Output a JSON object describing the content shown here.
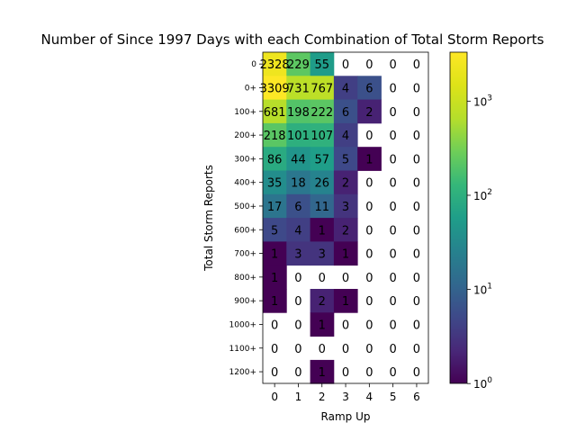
{
  "chart_data": {
    "type": "heatmap",
    "title": "Number of Since 1997 Days with each Combination of Total Storm Reports",
    "xlabel": "Ramp Up",
    "ylabel": "Total Storm Reports",
    "x_categories": [
      "0",
      "1",
      "2",
      "3",
      "4",
      "5",
      "6"
    ],
    "y_categories": [
      "0",
      "0+",
      "100+",
      "200+",
      "300+",
      "400+",
      "500+",
      "600+",
      "700+",
      "800+",
      "900+",
      "1000+",
      "1100+",
      "1200+"
    ],
    "values": [
      [
        2328,
        229,
        55,
        0,
        0,
        0,
        0
      ],
      [
        3309,
        731,
        767,
        4,
        6,
        0,
        0
      ],
      [
        681,
        198,
        222,
        6,
        2,
        0,
        0
      ],
      [
        218,
        101,
        107,
        4,
        0,
        0,
        0
      ],
      [
        86,
        44,
        57,
        5,
        1,
        0,
        0
      ],
      [
        35,
        18,
        26,
        2,
        0,
        0,
        0
      ],
      [
        17,
        6,
        11,
        3,
        0,
        0,
        0
      ],
      [
        5,
        4,
        1,
        2,
        0,
        0,
        0
      ],
      [
        1,
        3,
        3,
        1,
        0,
        0,
        0
      ],
      [
        1,
        0,
        0,
        0,
        0,
        0,
        0
      ],
      [
        1,
        0,
        2,
        1,
        0,
        0,
        0
      ],
      [
        0,
        0,
        1,
        0,
        0,
        0,
        0
      ],
      [
        0,
        0,
        0,
        0,
        0,
        0,
        0
      ],
      [
        0,
        0,
        1,
        0,
        0,
        0,
        0
      ]
    ],
    "color_scale": "log",
    "colormap": "viridis",
    "zero_color": "#ffffff",
    "colorbar": {
      "min": 1,
      "max": 3309,
      "ticks": [
        {
          "base": "10",
          "exp": "0",
          "value": 1
        },
        {
          "base": "10",
          "exp": "1",
          "value": 10
        },
        {
          "base": "10",
          "exp": "2",
          "value": 100
        },
        {
          "base": "10",
          "exp": "3",
          "value": 1000
        }
      ]
    },
    "grid": false
  }
}
